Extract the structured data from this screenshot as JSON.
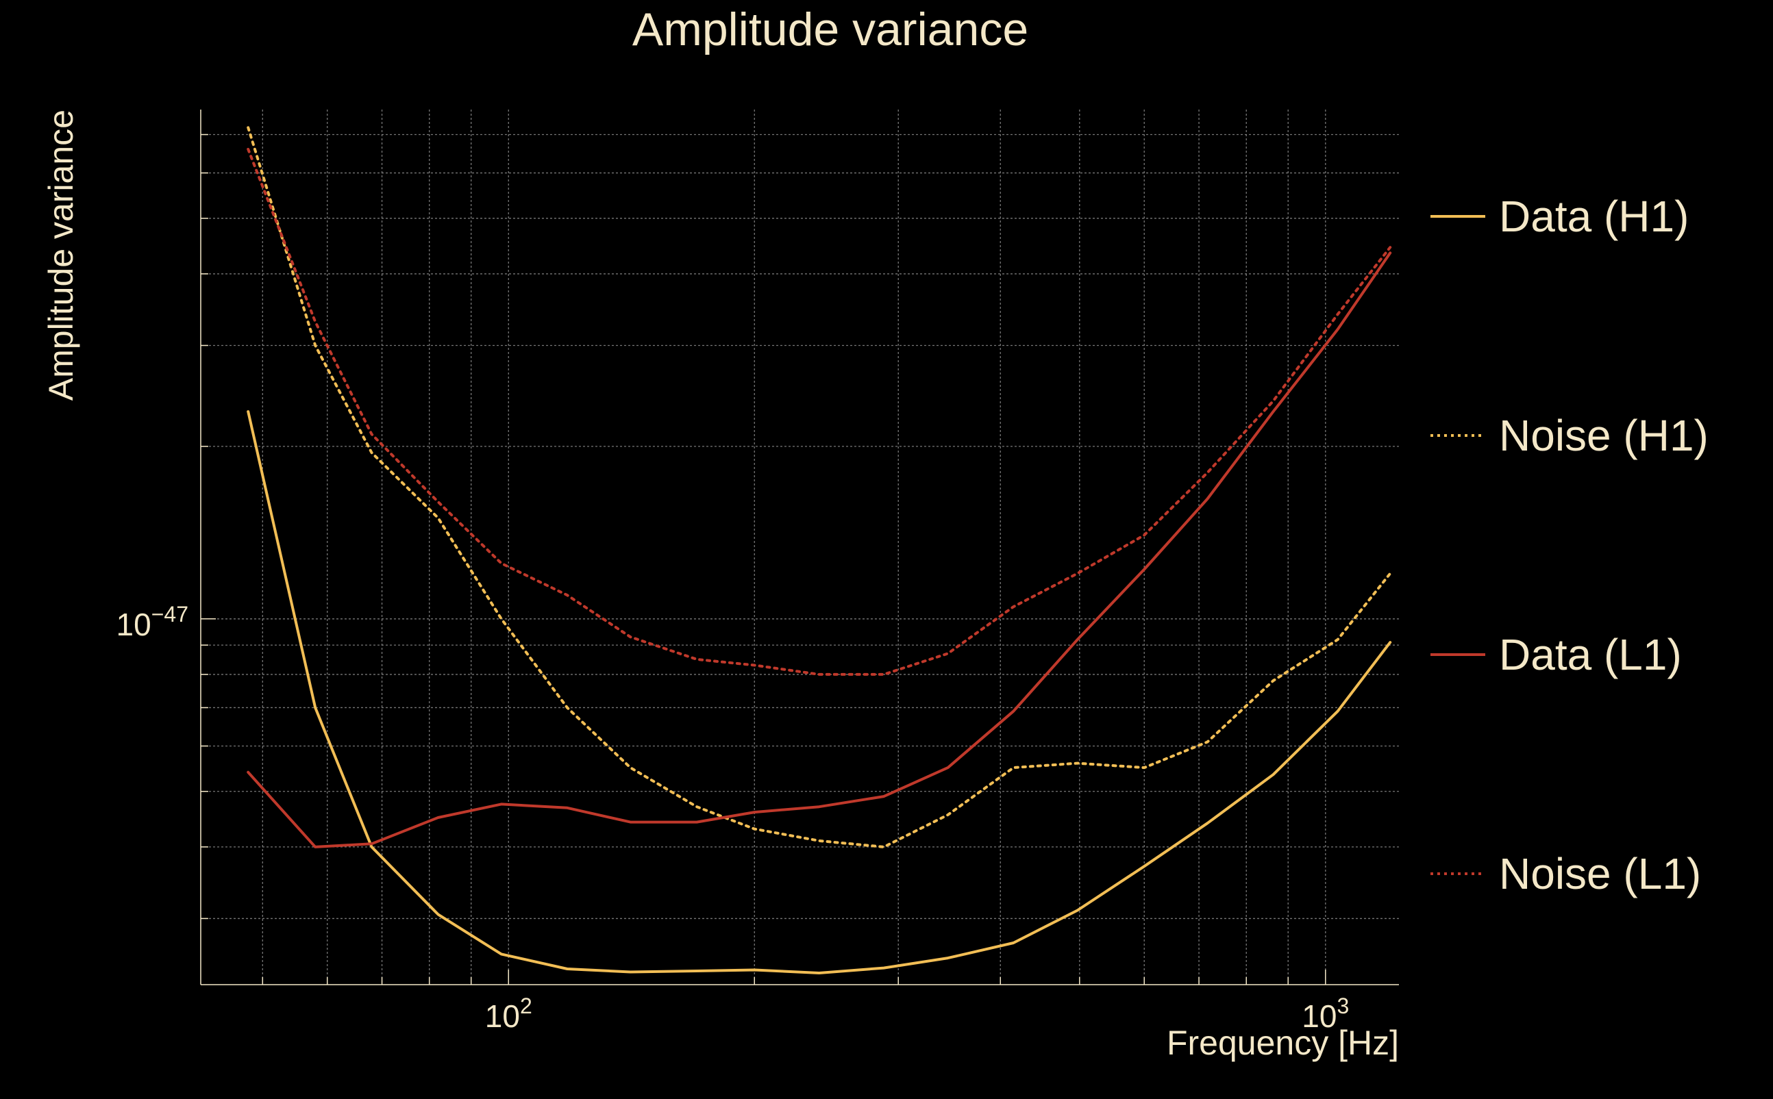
{
  "chart_data": {
    "type": "line",
    "title": "Amplitude variance",
    "xlabel": "Frequency [Hz]",
    "ylabel": "Amplitude variance",
    "xscale": "log",
    "yscale": "log",
    "xlim": [
      42,
      1230
    ],
    "ylim": [
      2.3e-48,
      7.74e-47
    ],
    "grid": true,
    "legend_position": "right",
    "x_ticks": [
      {
        "value": 100,
        "base": "10",
        "exp": "2"
      },
      {
        "value": 1000,
        "base": "10",
        "exp": "3"
      }
    ],
    "y_ticks": [
      {
        "value": 1e-47,
        "base": "10",
        "exp": "−47"
      }
    ],
    "colors": {
      "background": "#000000",
      "text": "#F4E8C8",
      "grid": "#8C8C8C",
      "h1": "#F2BE55",
      "l1": "#C0392B"
    },
    "series": [
      {
        "name": "Data (H1)",
        "style": "solid",
        "color": "#F2BE55",
        "x": [
          48,
          58,
          68,
          82,
          98,
          118,
          141,
          170,
          200,
          240,
          288,
          345,
          415,
          497,
          600,
          717,
          863,
          1035,
          1200
        ],
        "y": [
          2.3e-47,
          7e-48,
          4e-48,
          3.05e-48,
          2.6e-48,
          2.45e-48,
          2.42e-48,
          2.43e-48,
          2.44e-48,
          2.41e-48,
          2.46e-48,
          2.56e-48,
          2.72e-48,
          3.1e-48,
          3.7e-48,
          4.4e-48,
          5.35e-48,
          6.9e-48,
          9.1e-48
        ]
      },
      {
        "name": "Noise (H1)",
        "style": "dotted",
        "color": "#F2BE55",
        "x": [
          48,
          58,
          68,
          82,
          98,
          118,
          141,
          170,
          200,
          240,
          288,
          345,
          415,
          497,
          600,
          717,
          863,
          1035,
          1200
        ],
        "y": [
          7.2e-47,
          3e-47,
          1.95e-47,
          1.5e-47,
          1e-47,
          7e-48,
          5.5e-48,
          4.7e-48,
          4.3e-48,
          4.1e-48,
          4e-48,
          4.55e-48,
          5.5e-48,
          5.6e-48,
          5.5e-48,
          6.1e-48,
          7.8e-48,
          9.2e-48,
          1.2e-47
        ]
      },
      {
        "name": "Data (L1)",
        "style": "solid",
        "color": "#C0392B",
        "x": [
          48,
          58,
          68,
          82,
          98,
          118,
          141,
          170,
          200,
          240,
          288,
          345,
          415,
          497,
          600,
          717,
          863,
          1035,
          1200
        ],
        "y": [
          5.4e-48,
          4e-48,
          4.05e-48,
          4.5e-48,
          4.75e-48,
          4.68e-48,
          4.42e-48,
          4.42e-48,
          4.6e-48,
          4.7e-48,
          4.9e-48,
          5.5e-48,
          6.9e-48,
          9.2e-48,
          1.22e-47,
          1.62e-47,
          2.3e-47,
          3.2e-47,
          4.35e-47
        ]
      },
      {
        "name": "Noise (L1)",
        "style": "dotted",
        "color": "#C0392B",
        "x": [
          48,
          58,
          68,
          82,
          98,
          118,
          141,
          170,
          200,
          240,
          288,
          345,
          415,
          497,
          600,
          717,
          863,
          1035,
          1200
        ],
        "y": [
          6.6e-47,
          3.3e-47,
          2.1e-47,
          1.6e-47,
          1.25e-47,
          1.1e-47,
          9.3e-48,
          8.5e-48,
          8.3e-48,
          8e-48,
          8e-48,
          8.7e-48,
          1.05e-47,
          1.2e-47,
          1.4e-47,
          1.8e-47,
          2.4e-47,
          3.4e-47,
          4.45e-47
        ]
      }
    ]
  }
}
